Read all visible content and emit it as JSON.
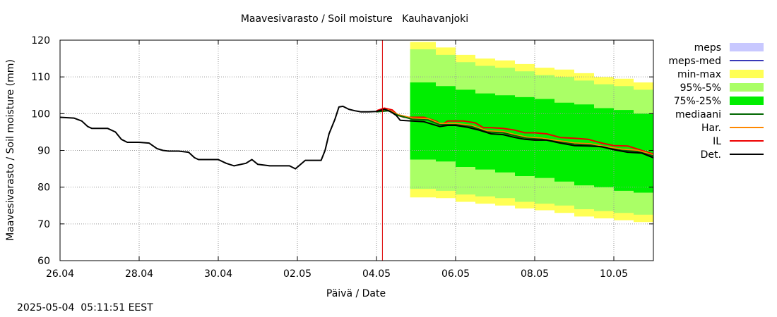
{
  "chart_data": {
    "type": "area",
    "title": "Maavesivarasto / Soil moisture   Kauhavanjoki",
    "xlabel": "Päivä / Date",
    "ylabel": "Maavesivarasto / Soil moisture (mm)",
    "ylim": [
      60,
      120
    ],
    "xlim": [
      0,
      15
    ],
    "x_unit": "days since 26.04",
    "yticks": [
      60,
      70,
      80,
      90,
      100,
      110,
      120
    ],
    "xticks": [
      {
        "x": 0,
        "label": "26.04"
      },
      {
        "x": 2,
        "label": "28.04"
      },
      {
        "x": 4,
        "label": "30.04"
      },
      {
        "x": 6,
        "label": "02.05"
      },
      {
        "x": 8,
        "label": "04.05"
      },
      {
        "x": 10,
        "label": "06.05"
      },
      {
        "x": 12,
        "label": "08.05"
      },
      {
        "x": 14,
        "label": "10.05"
      }
    ],
    "grid": true,
    "forecast_start_x": 8.15,
    "legend_position": "right",
    "legend": [
      {
        "label": "meps",
        "kind": "fill",
        "color": "#c8c8ff"
      },
      {
        "label": "meps-med",
        "kind": "line",
        "color": "#3a3ab8"
      },
      {
        "label": "min-max",
        "kind": "fill",
        "color": "#ffff55"
      },
      {
        "label": "95%-5%",
        "kind": "fill",
        "color": "#aaff66"
      },
      {
        "label": "75%-25%",
        "kind": "fill",
        "color": "#00ee00"
      },
      {
        "label": "mediaani",
        "kind": "line",
        "color": "#006600"
      },
      {
        "label": "Har.",
        "kind": "line",
        "color": "#ff8800"
      },
      {
        "label": "IL",
        "kind": "line",
        "color": "#ee0000"
      },
      {
        "label": "Det.",
        "kind": "line",
        "color": "#000000"
      }
    ],
    "bands": {
      "x": [
        8.85,
        9.5,
        10.0,
        10.5,
        11.0,
        11.5,
        12.0,
        12.5,
        13.0,
        13.5,
        14.0,
        14.5,
        15.0
      ],
      "minmax_upper": [
        119.5,
        118,
        116,
        115,
        114.5,
        113.5,
        112.5,
        112,
        111,
        110,
        109.5,
        108.5,
        107.5
      ],
      "minmax_lower": [
        77.2,
        77,
        76,
        75.5,
        75,
        74.2,
        73.7,
        73,
        72,
        71.5,
        71,
        70.5,
        69.5
      ],
      "p95_upper": [
        117.5,
        116,
        114,
        113,
        112.5,
        111.5,
        110.5,
        110,
        109,
        108,
        107.5,
        106.5,
        105.5
      ],
      "p95_lower": [
        79.5,
        79,
        78,
        77.5,
        77,
        76,
        75.5,
        75,
        74,
        73.5,
        73,
        72.5,
        71.5
      ],
      "p75_upper": [
        108.5,
        107.5,
        106.5,
        105.5,
        105,
        104.5,
        104,
        103,
        102.5,
        101.5,
        101,
        100,
        99
      ],
      "p75_lower": [
        87.5,
        87,
        85.5,
        84.8,
        84,
        83,
        82.5,
        81.5,
        80.5,
        80,
        79,
        78.5,
        77.5
      ]
    },
    "series": [
      {
        "name": "Det.",
        "color": "#000000",
        "x": [
          0,
          0.35,
          0.55,
          0.7,
          0.8,
          1.2,
          1.4,
          1.55,
          1.7,
          2.0,
          2.25,
          2.45,
          2.6,
          2.75,
          3.0,
          3.25,
          3.4,
          3.5,
          3.7,
          4.0,
          4.2,
          4.4,
          4.7,
          4.85,
          5.0,
          5.3,
          5.55,
          5.8,
          5.95,
          6.2,
          6.6,
          6.7,
          6.8,
          6.95,
          7.05,
          7.15,
          7.3,
          7.45,
          7.6,
          7.7,
          7.8,
          8.0,
          8.2,
          8.35,
          8.5,
          8.6,
          8.9,
          9.2,
          9.6,
          9.8,
          10.0,
          10.3,
          10.6,
          10.9,
          11.2,
          11.5,
          11.75,
          12.0,
          12.3,
          12.65,
          13.0,
          13.35,
          13.7,
          14.0,
          14.35,
          14.7,
          15.0
        ],
        "y": [
          99,
          98.8,
          98,
          96.5,
          96,
          96,
          95,
          93,
          92.2,
          92.2,
          92,
          90.5,
          90,
          89.8,
          89.8,
          89.5,
          88,
          87.5,
          87.5,
          87.5,
          86.5,
          85.8,
          86.5,
          87.5,
          86.2,
          85.8,
          85.8,
          85.8,
          85,
          87.3,
          87.3,
          90,
          94.5,
          98.5,
          101.8,
          102,
          101.2,
          100.8,
          100.5,
          100.5,
          100.5,
          100.6,
          101.2,
          100.6,
          99.5,
          98.2,
          98,
          97.8,
          96.5,
          96.8,
          96.8,
          96.3,
          95.5,
          94.5,
          94.3,
          93.5,
          93,
          92.8,
          92.8,
          92,
          91.3,
          91.2,
          91,
          90.2,
          89.5,
          89.3,
          88
        ]
      },
      {
        "name": "IL",
        "color": "#ee0000",
        "x": [
          8.0,
          8.2,
          8.4,
          8.55,
          8.7,
          8.9,
          9.2,
          9.5,
          9.65,
          9.8,
          10.0,
          10.2,
          10.5,
          10.7,
          10.9,
          11.2,
          11.5,
          11.75,
          12.0,
          12.3,
          12.65,
          13.0,
          13.35,
          13.7,
          14.0,
          14.35,
          14.7,
          15.0
        ],
        "y": [
          100.8,
          101.5,
          101,
          99.5,
          99,
          99,
          99,
          98,
          97,
          98,
          98,
          98,
          97.5,
          96.2,
          96.2,
          96,
          95.5,
          94.8,
          94.8,
          94.5,
          93.5,
          93.3,
          93,
          92,
          91.3,
          91.2,
          90,
          89
        ]
      },
      {
        "name": "mediaani",
        "color": "#006600",
        "x": [
          8.0,
          8.3,
          8.55,
          8.9,
          9.3,
          9.6,
          10.0,
          10.4,
          10.8,
          11.2,
          11.5,
          11.8,
          12.2,
          12.6,
          13.0,
          13.4,
          13.8,
          14.2,
          14.6,
          15.0
        ],
        "y": [
          100.5,
          100.8,
          99.5,
          98.5,
          98.3,
          97,
          97,
          96.5,
          95,
          94.8,
          94,
          93.3,
          93,
          92.3,
          91.7,
          91.5,
          90.7,
          90,
          89.7,
          88.5
        ]
      },
      {
        "name": "Har.",
        "color": "#ff8800",
        "x": [
          8.0,
          8.3,
          8.55,
          8.9,
          9.3,
          9.6,
          10.0,
          10.4,
          10.8,
          11.2,
          11.5,
          11.8,
          12.2,
          12.6,
          13.0,
          13.4,
          13.8,
          14.2,
          14.6,
          15.0
        ],
        "y": [
          100.6,
          101,
          99.7,
          98.8,
          98.6,
          97.3,
          97.3,
          96.8,
          95.3,
          95.1,
          94.3,
          93.6,
          93.3,
          92.6,
          92,
          91.8,
          91,
          90.3,
          90,
          88.8
        ]
      }
    ]
  },
  "footer": {
    "timestamp": "2025-05-04  05:11:51 EEST"
  }
}
